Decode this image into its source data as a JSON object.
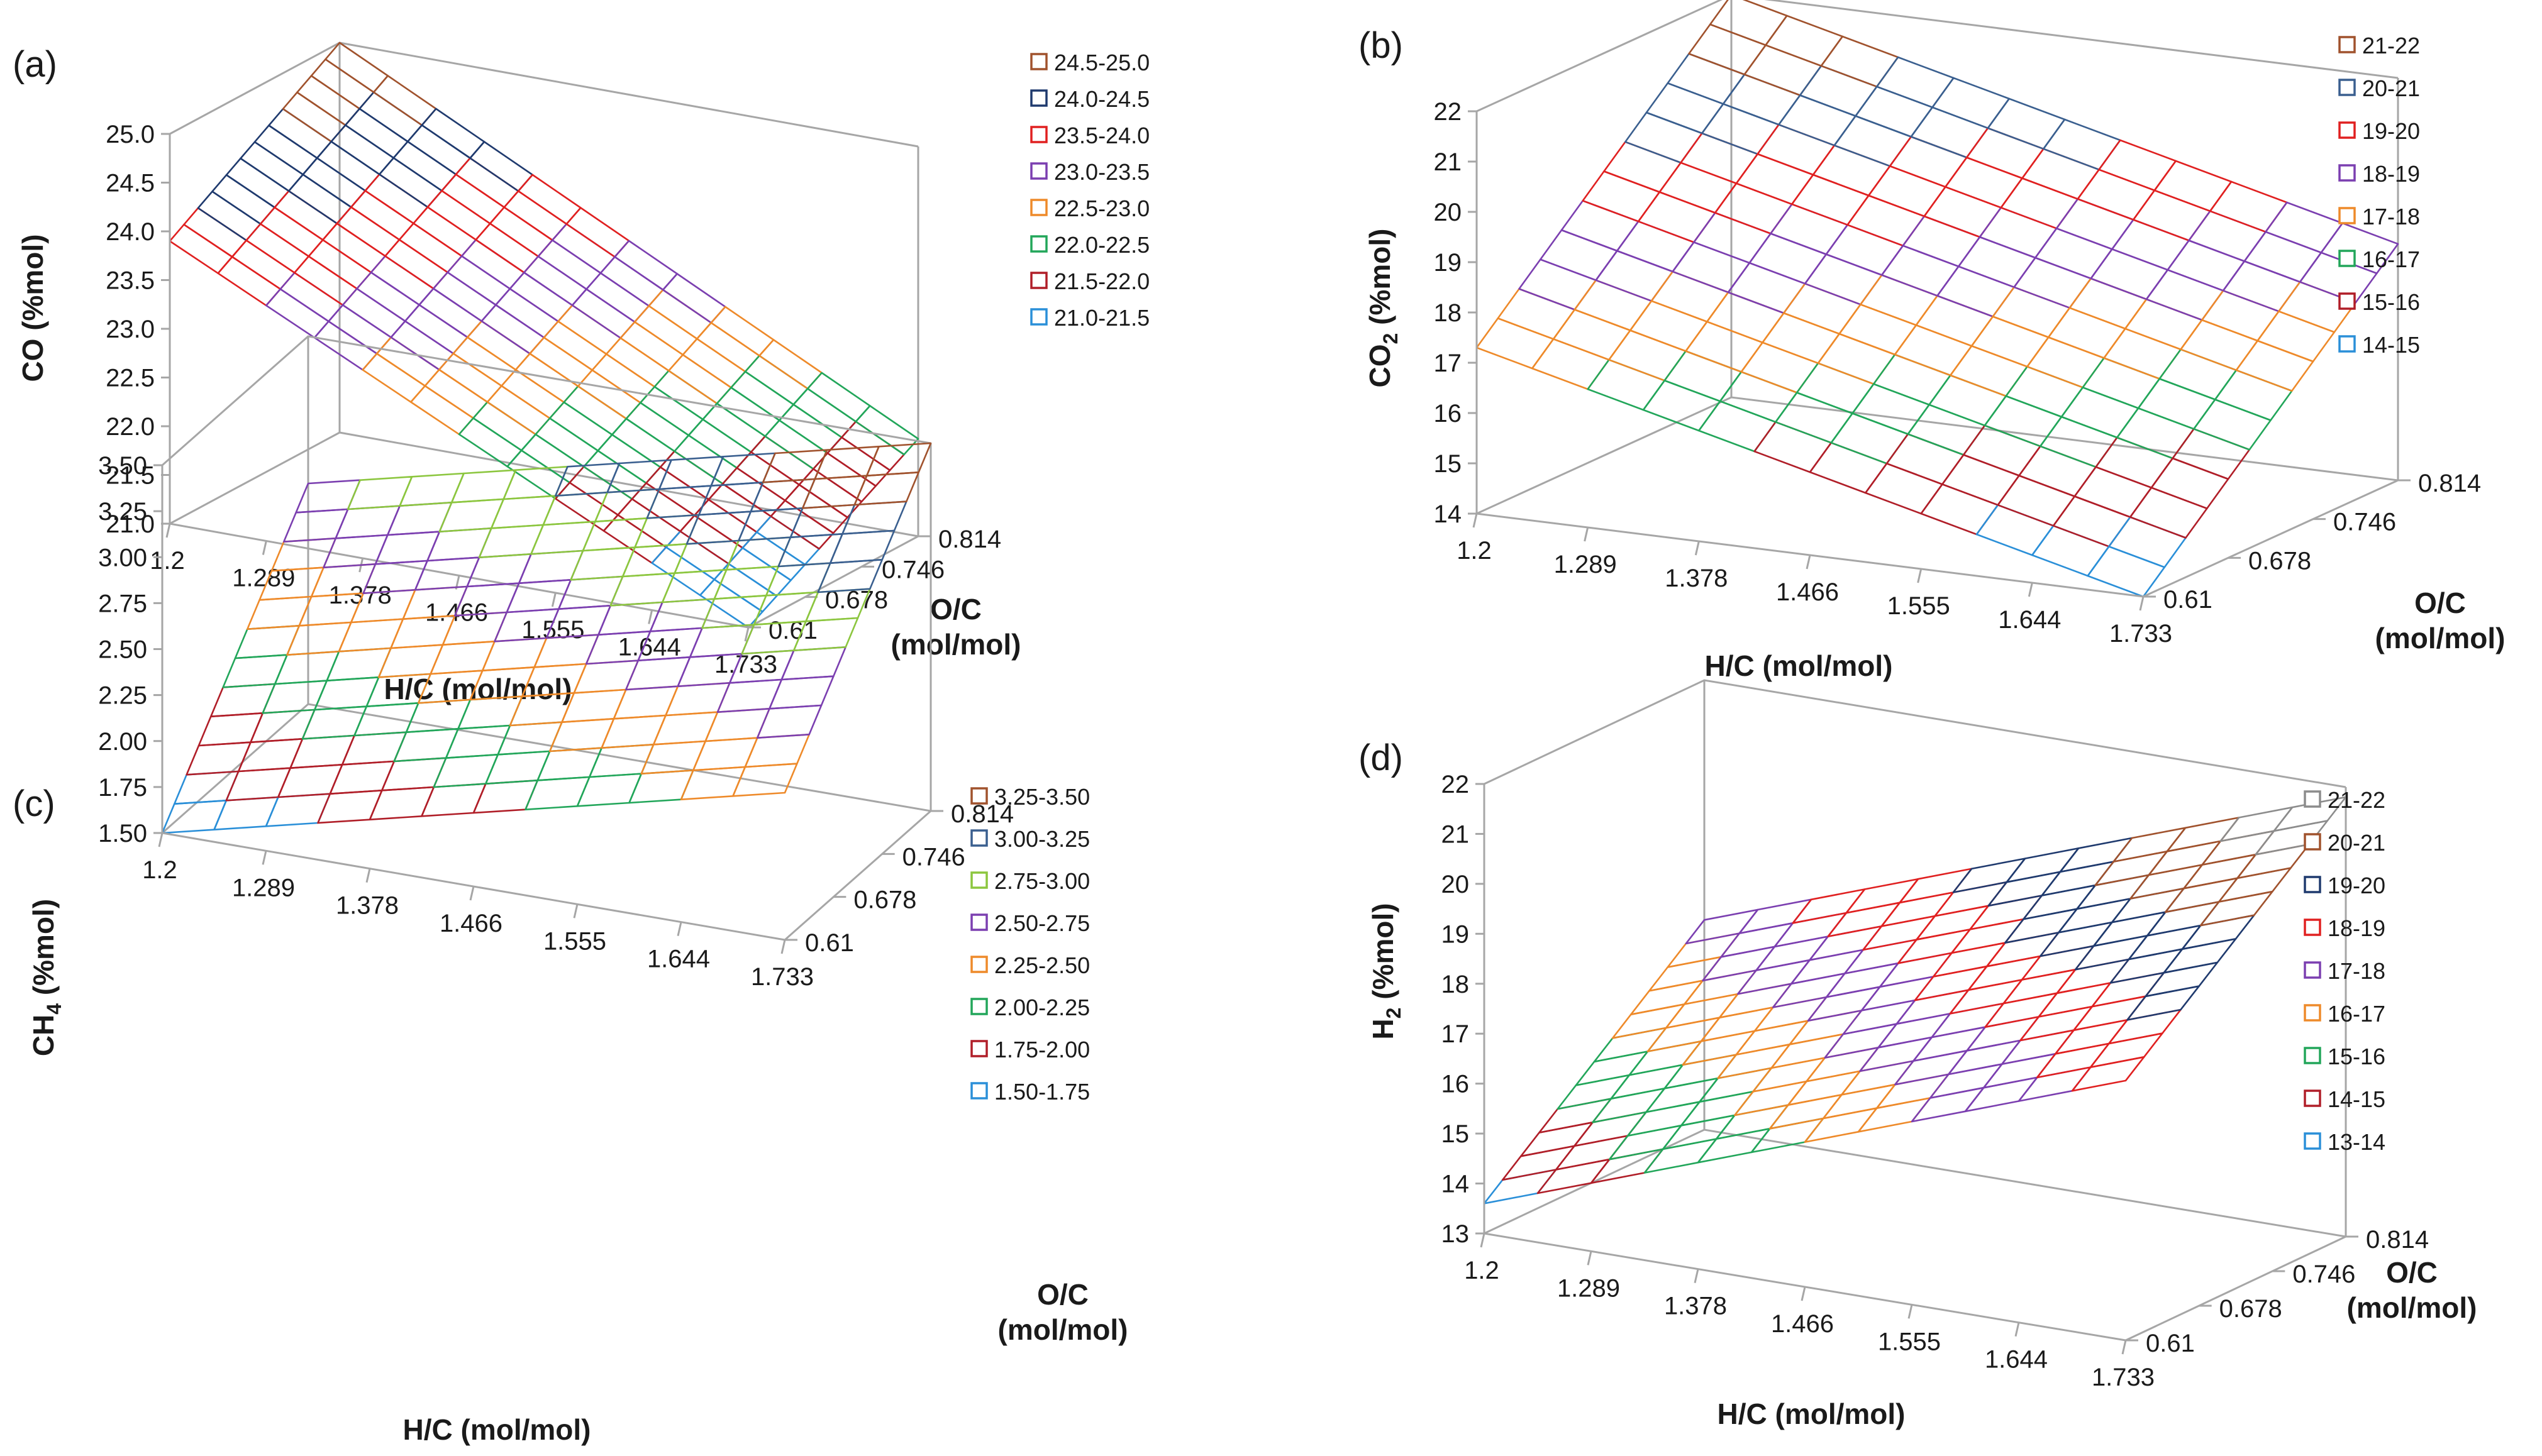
{
  "chart_data": [
    {
      "panel_label": "(a)",
      "type": "surface",
      "zlabel": "CO (%mol)",
      "zlabel_main": "CO",
      "zlabel_sub": "",
      "zlabel_unit": " (%mol)",
      "xlabel": "H/C (mol/mol)",
      "ylabel_line1": "O/C",
      "ylabel_line2": "(mol/mol)",
      "x_ticks": [
        "1.2",
        "1.289",
        "1.378",
        "1.466",
        "1.555",
        "1.644",
        "1.733"
      ],
      "y_ticks": [
        "0.61",
        "0.678",
        "0.746",
        "0.814"
      ],
      "z_ticks": [
        "21.0",
        "21.5",
        "22.0",
        "22.5",
        "23.0",
        "23.5",
        "24.0",
        "24.5",
        "25.0"
      ],
      "xlim": [
        1.2,
        1.733
      ],
      "ylim": [
        0.61,
        0.814
      ],
      "zlim": [
        21.0,
        25.0
      ],
      "corner_values": {
        "hc_low_oc_low": 23.9,
        "hc_high_oc_low": 21.0,
        "hc_low_oc_high": 25.0,
        "hc_high_oc_high": 22.0
      },
      "legend": [
        {
          "label": "24.5-25.0",
          "color": "#a0522d"
        },
        {
          "label": "24.0-24.5",
          "color": "#1f3a6e"
        },
        {
          "label": "23.5-24.0",
          "color": "#e02020"
        },
        {
          "label": "23.0-23.5",
          "color": "#7b3fb0"
        },
        {
          "label": "22.5-23.0",
          "color": "#ee8a2a"
        },
        {
          "label": "22.0-22.5",
          "color": "#22a65a"
        },
        {
          "label": "21.5-22.0",
          "color": "#b01e28"
        },
        {
          "label": "21.0-21.5",
          "color": "#2a8fd8"
        }
      ]
    },
    {
      "panel_label": "(b)",
      "type": "surface",
      "zlabel": "CO2 (%mol)",
      "zlabel_main": "CO",
      "zlabel_sub": "2",
      "zlabel_unit": " (%mol)",
      "xlabel": "H/C (mol/mol)",
      "ylabel_line1": "O/C",
      "ylabel_line2": "(mol/mol)",
      "x_ticks": [
        "1.2",
        "1.289",
        "1.378",
        "1.466",
        "1.555",
        "1.644",
        "1.733"
      ],
      "y_ticks": [
        "0.61",
        "0.678",
        "0.746",
        "0.814"
      ],
      "z_ticks": [
        "14",
        "15",
        "16",
        "17",
        "18",
        "19",
        "20",
        "21",
        "22"
      ],
      "xlim": [
        1.2,
        1.733
      ],
      "ylim": [
        0.61,
        0.814
      ],
      "zlim": [
        14,
        22
      ],
      "corner_values": {
        "hc_low_oc_low": 17.3,
        "hc_high_oc_low": 14.0,
        "hc_low_oc_high": 22.0,
        "hc_high_oc_high": 18.7
      },
      "legend": [
        {
          "label": "21-22",
          "color": "#a0522d"
        },
        {
          "label": "20-21",
          "color": "#3a5f8f"
        },
        {
          "label": "19-20",
          "color": "#e02020"
        },
        {
          "label": "18-19",
          "color": "#7b3fb0"
        },
        {
          "label": "17-18",
          "color": "#ee8a2a"
        },
        {
          "label": "16-17",
          "color": "#22a65a"
        },
        {
          "label": "15-16",
          "color": "#b01e28"
        },
        {
          "label": "14-15",
          "color": "#2a8fd8"
        }
      ]
    },
    {
      "panel_label": "(c)",
      "type": "surface",
      "zlabel": "CH4 (%mol)",
      "zlabel_main": "CH",
      "zlabel_sub": "4",
      "zlabel_unit": " (%mol)",
      "xlabel": "H/C (mol/mol)",
      "ylabel_line1": "O/C",
      "ylabel_line2": "(mol/mol)",
      "x_ticks": [
        "1.2",
        "1.289",
        "1.378",
        "1.466",
        "1.555",
        "1.644",
        "1.733"
      ],
      "y_ticks": [
        "0.61",
        "0.678",
        "0.746",
        "0.814"
      ],
      "z_ticks": [
        "1.50",
        "1.75",
        "2.00",
        "2.25",
        "2.50",
        "2.75",
        "3.00",
        "3.25",
        "3.50"
      ],
      "xlim": [
        1.2,
        1.733
      ],
      "ylim": [
        0.61,
        0.814
      ],
      "zlim": [
        1.5,
        3.5
      ],
      "corner_values": {
        "hc_low_oc_low": 1.5,
        "hc_high_oc_low": 2.3,
        "hc_low_oc_high": 2.7,
        "hc_high_oc_high": 3.5
      },
      "legend": [
        {
          "label": "3.25-3.50",
          "color": "#a0522d"
        },
        {
          "label": "3.00-3.25",
          "color": "#3a5f8f"
        },
        {
          "label": "2.75-3.00",
          "color": "#8cc63f"
        },
        {
          "label": "2.50-2.75",
          "color": "#7b3fb0"
        },
        {
          "label": "2.25-2.50",
          "color": "#ee8a2a"
        },
        {
          "label": "2.00-2.25",
          "color": "#22a65a"
        },
        {
          "label": "1.75-2.00",
          "color": "#b01e28"
        },
        {
          "label": "1.50-1.75",
          "color": "#2a8fd8"
        }
      ]
    },
    {
      "panel_label": "(d)",
      "type": "surface",
      "zlabel": "H2 (%mol)",
      "zlabel_main": "H",
      "zlabel_sub": "2",
      "zlabel_unit": " (%mol)",
      "xlabel": "H/C (mol/mol)",
      "ylabel_line1": "O/C",
      "ylabel_line2": "(mol/mol)",
      "x_ticks": [
        "1.2",
        "1.289",
        "1.378",
        "1.466",
        "1.555",
        "1.644",
        "1.733"
      ],
      "y_ticks": [
        "0.61",
        "0.678",
        "0.746",
        "0.814"
      ],
      "z_ticks": [
        "13",
        "14",
        "15",
        "16",
        "17",
        "18",
        "19",
        "20",
        "21",
        "22"
      ],
      "xlim": [
        1.2,
        1.733
      ],
      "ylim": [
        0.61,
        0.814
      ],
      "zlim": [
        13,
        22
      ],
      "corner_values": {
        "hc_low_oc_low": 13.6,
        "hc_high_oc_low": 18.2,
        "hc_low_oc_high": 17.2,
        "hc_high_oc_high": 21.8
      },
      "legend": [
        {
          "label": "21-22",
          "color": "#8c8c8c"
        },
        {
          "label": "20-21",
          "color": "#a0522d"
        },
        {
          "label": "19-20",
          "color": "#1f3a6e"
        },
        {
          "label": "18-19",
          "color": "#e02020"
        },
        {
          "label": "17-18",
          "color": "#7b3fb0"
        },
        {
          "label": "16-17",
          "color": "#ee8a2a"
        },
        {
          "label": "15-16",
          "color": "#22a65a"
        },
        {
          "label": "14-15",
          "color": "#b01e28"
        },
        {
          "label": "13-14",
          "color": "#2a8fd8"
        }
      ]
    }
  ],
  "colors": {
    "axis": "#a6a6a6",
    "text": "#1a1a1a",
    "background": "#ffffff"
  }
}
